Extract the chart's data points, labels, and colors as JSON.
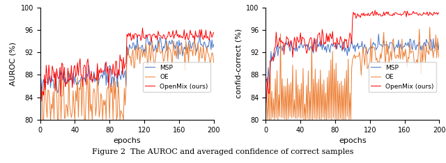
{
  "left_ylabel": "AUROC (%)",
  "right_ylabel": "confid-correct (%)",
  "xlabel": "epochs",
  "caption": "Figure 2  The AUROC and averaged confidence of correct samples",
  "xlim": [
    0,
    200
  ],
  "left_ylim": [
    80,
    100
  ],
  "right_ylim": [
    80,
    100
  ],
  "xticks": [
    0,
    40,
    80,
    120,
    160,
    200
  ],
  "left_yticks": [
    80,
    84,
    88,
    92,
    96,
    100
  ],
  "right_yticks": [
    80,
    84,
    88,
    92,
    96,
    100
  ],
  "colors": {
    "MSP": "#4472C4",
    "OE": "#ED7D31",
    "OpenMix": "#FF0000"
  },
  "legend_labels": [
    "MSP",
    "OE",
    "OpenMix (ours)"
  ],
  "background": "#ffffff"
}
